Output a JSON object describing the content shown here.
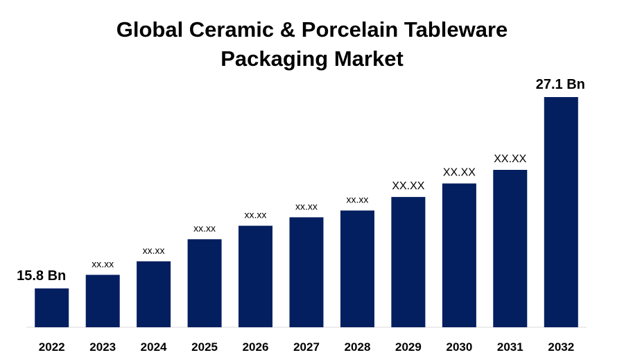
{
  "chart_data": {
    "type": "bar",
    "title_lines": [
      "Global Ceramic & Porcelain Tableware",
      "Packaging Market"
    ],
    "xlabel": "",
    "ylabel": "",
    "categories": [
      "2022",
      "2023",
      "2024",
      "2025",
      "2026",
      "2027",
      "2028",
      "2029",
      "2030",
      "2031",
      "2032"
    ],
    "values": [
      15.8,
      16.6,
      17.4,
      18.7,
      19.5,
      20.0,
      20.4,
      21.2,
      22.0,
      22.8,
      27.1
    ],
    "data_labels": [
      "15.8 Bn",
      "xx.xx",
      "xx.xx",
      "xx.xx",
      "xx.xx",
      "xx.xx",
      "xx.xx",
      "XX.XX",
      "XX.XX",
      "XX.XX",
      "27.1 Bn"
    ],
    "grid": false,
    "legend": "none",
    "bar_color": "#041f60",
    "axis_color": "#d9d9d9"
  }
}
